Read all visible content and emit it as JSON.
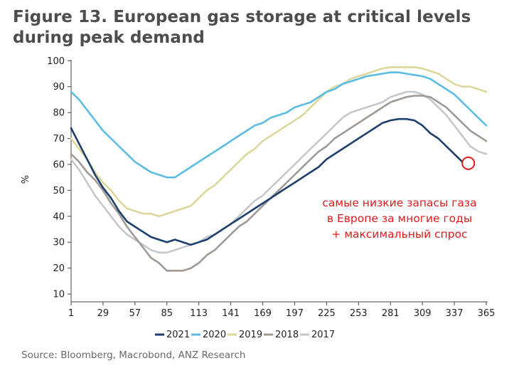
{
  "title": "Figure 13. European gas storage at critical levels during peak demand",
  "source": "Source:  Bloomberg, Macrobond, ANZ Research",
  "chart_data": {
    "type": "line",
    "ylabel": "%",
    "xlabel": "",
    "xlim": [
      1,
      365
    ],
    "ylim": [
      7,
      102
    ],
    "x_ticks": [
      1,
      29,
      57,
      85,
      113,
      141,
      169,
      197,
      225,
      253,
      281,
      309,
      337,
      365
    ],
    "y_ticks": [
      10,
      20,
      30,
      40,
      50,
      60,
      70,
      80,
      90,
      100
    ],
    "grid": false,
    "legend_position": "bottom",
    "series": [
      {
        "name": "2021",
        "color": "#1d3f6b",
        "points": [
          [
            1,
            74
          ],
          [
            8,
            68
          ],
          [
            15,
            62
          ],
          [
            22,
            56
          ],
          [
            29,
            51
          ],
          [
            36,
            47
          ],
          [
            43,
            42
          ],
          [
            50,
            38
          ],
          [
            57,
            36
          ],
          [
            64,
            34
          ],
          [
            71,
            32
          ],
          [
            78,
            31
          ],
          [
            85,
            30
          ],
          [
            92,
            31
          ],
          [
            99,
            30
          ],
          [
            106,
            29
          ],
          [
            113,
            30
          ],
          [
            120,
            31
          ],
          [
            127,
            33
          ],
          [
            134,
            35
          ],
          [
            141,
            37
          ],
          [
            148,
            39
          ],
          [
            155,
            41
          ],
          [
            162,
            43
          ],
          [
            169,
            45
          ],
          [
            176,
            47
          ],
          [
            183,
            49
          ],
          [
            190,
            51
          ],
          [
            197,
            53
          ],
          [
            204,
            55
          ],
          [
            211,
            57
          ],
          [
            218,
            59
          ],
          [
            225,
            62
          ],
          [
            232,
            64
          ],
          [
            239,
            66
          ],
          [
            246,
            68
          ],
          [
            253,
            70
          ],
          [
            260,
            72
          ],
          [
            267,
            74
          ],
          [
            274,
            76
          ],
          [
            281,
            77
          ],
          [
            288,
            77.5
          ],
          [
            295,
            77.5
          ],
          [
            302,
            77
          ],
          [
            309,
            75
          ],
          [
            316,
            72
          ],
          [
            323,
            70
          ],
          [
            330,
            67
          ],
          [
            337,
            64
          ],
          [
            344,
            61
          ]
        ]
      },
      {
        "name": "2020",
        "color": "#5bbde3",
        "points": [
          [
            1,
            88
          ],
          [
            8,
            85
          ],
          [
            15,
            81
          ],
          [
            22,
            77
          ],
          [
            29,
            73
          ],
          [
            36,
            70
          ],
          [
            43,
            67
          ],
          [
            50,
            64
          ],
          [
            57,
            61
          ],
          [
            64,
            59
          ],
          [
            71,
            57
          ],
          [
            78,
            56
          ],
          [
            85,
            55
          ],
          [
            92,
            55
          ],
          [
            99,
            57
          ],
          [
            106,
            59
          ],
          [
            113,
            61
          ],
          [
            120,
            63
          ],
          [
            127,
            65
          ],
          [
            134,
            67
          ],
          [
            141,
            69
          ],
          [
            148,
            71
          ],
          [
            155,
            73
          ],
          [
            162,
            75
          ],
          [
            169,
            76
          ],
          [
            176,
            78
          ],
          [
            183,
            79
          ],
          [
            190,
            80
          ],
          [
            197,
            82
          ],
          [
            204,
            83
          ],
          [
            211,
            84
          ],
          [
            218,
            86
          ],
          [
            225,
            88
          ],
          [
            232,
            89
          ],
          [
            239,
            91
          ],
          [
            246,
            92
          ],
          [
            253,
            93
          ],
          [
            260,
            94
          ],
          [
            267,
            94.5
          ],
          [
            274,
            95
          ],
          [
            281,
            95.5
          ],
          [
            288,
            95.5
          ],
          [
            295,
            95
          ],
          [
            302,
            94.5
          ],
          [
            309,
            94
          ],
          [
            316,
            93
          ],
          [
            323,
            91
          ],
          [
            330,
            89
          ],
          [
            337,
            87
          ],
          [
            344,
            84
          ],
          [
            351,
            81
          ],
          [
            358,
            78
          ],
          [
            365,
            75
          ]
        ]
      },
      {
        "name": "2019",
        "color": "#ddd79b",
        "points": [
          [
            1,
            70
          ],
          [
            8,
            66
          ],
          [
            15,
            62
          ],
          [
            22,
            57
          ],
          [
            29,
            53
          ],
          [
            36,
            50
          ],
          [
            43,
            46
          ],
          [
            50,
            43
          ],
          [
            57,
            42
          ],
          [
            64,
            41
          ],
          [
            71,
            41
          ],
          [
            78,
            40
          ],
          [
            85,
            41
          ],
          [
            92,
            42
          ],
          [
            99,
            43
          ],
          [
            106,
            44
          ],
          [
            113,
            47
          ],
          [
            120,
            50
          ],
          [
            127,
            52
          ],
          [
            134,
            55
          ],
          [
            141,
            58
          ],
          [
            148,
            61
          ],
          [
            155,
            64
          ],
          [
            162,
            66
          ],
          [
            169,
            69
          ],
          [
            176,
            71
          ],
          [
            183,
            73
          ],
          [
            190,
            75
          ],
          [
            197,
            77
          ],
          [
            204,
            79
          ],
          [
            211,
            82
          ],
          [
            218,
            85
          ],
          [
            225,
            88
          ],
          [
            232,
            90
          ],
          [
            239,
            91
          ],
          [
            246,
            93
          ],
          [
            253,
            94
          ],
          [
            260,
            95
          ],
          [
            267,
            96
          ],
          [
            274,
            97
          ],
          [
            281,
            97.5
          ],
          [
            288,
            97.5
          ],
          [
            295,
            97.5
          ],
          [
            302,
            97.5
          ],
          [
            309,
            97
          ],
          [
            316,
            96
          ],
          [
            323,
            95
          ],
          [
            330,
            93
          ],
          [
            337,
            91
          ],
          [
            344,
            90
          ],
          [
            351,
            90
          ],
          [
            358,
            89
          ],
          [
            365,
            88
          ]
        ]
      },
      {
        "name": "2018",
        "color": "#a09a96",
        "points": [
          [
            1,
            64
          ],
          [
            8,
            61
          ],
          [
            15,
            57
          ],
          [
            22,
            54
          ],
          [
            29,
            50
          ],
          [
            36,
            45
          ],
          [
            43,
            41
          ],
          [
            50,
            36
          ],
          [
            57,
            32
          ],
          [
            64,
            28
          ],
          [
            71,
            24
          ],
          [
            78,
            22
          ],
          [
            85,
            19
          ],
          [
            92,
            19
          ],
          [
            99,
            19
          ],
          [
            106,
            20
          ],
          [
            113,
            22
          ],
          [
            120,
            25
          ],
          [
            127,
            27
          ],
          [
            134,
            30
          ],
          [
            141,
            33
          ],
          [
            148,
            36
          ],
          [
            155,
            38
          ],
          [
            162,
            41
          ],
          [
            169,
            44
          ],
          [
            176,
            47
          ],
          [
            183,
            50
          ],
          [
            190,
            53
          ],
          [
            197,
            56
          ],
          [
            204,
            59
          ],
          [
            211,
            62
          ],
          [
            218,
            65
          ],
          [
            225,
            67
          ],
          [
            232,
            70
          ],
          [
            239,
            72
          ],
          [
            246,
            74
          ],
          [
            253,
            76
          ],
          [
            260,
            78
          ],
          [
            267,
            80
          ],
          [
            274,
            82
          ],
          [
            281,
            84
          ],
          [
            288,
            85
          ],
          [
            295,
            86
          ],
          [
            302,
            86.5
          ],
          [
            309,
            86.5
          ],
          [
            316,
            86
          ],
          [
            323,
            84
          ],
          [
            330,
            82
          ],
          [
            337,
            79
          ],
          [
            344,
            76
          ],
          [
            351,
            73
          ],
          [
            358,
            71
          ],
          [
            365,
            69
          ]
        ]
      },
      {
        "name": "2017",
        "color": "#c5c8cb",
        "points": [
          [
            1,
            62
          ],
          [
            8,
            58
          ],
          [
            15,
            53
          ],
          [
            22,
            48
          ],
          [
            29,
            44
          ],
          [
            36,
            40
          ],
          [
            43,
            36
          ],
          [
            50,
            33
          ],
          [
            57,
            31
          ],
          [
            64,
            29
          ],
          [
            71,
            27
          ],
          [
            78,
            26
          ],
          [
            85,
            26
          ],
          [
            92,
            27
          ],
          [
            99,
            28
          ],
          [
            106,
            29
          ],
          [
            113,
            30
          ],
          [
            120,
            32
          ],
          [
            127,
            33
          ],
          [
            134,
            35
          ],
          [
            141,
            37
          ],
          [
            148,
            40
          ],
          [
            155,
            43
          ],
          [
            162,
            46
          ],
          [
            169,
            48
          ],
          [
            176,
            51
          ],
          [
            183,
            54
          ],
          [
            190,
            57
          ],
          [
            197,
            60
          ],
          [
            204,
            63
          ],
          [
            211,
            66
          ],
          [
            218,
            69
          ],
          [
            225,
            72
          ],
          [
            232,
            75
          ],
          [
            239,
            78
          ],
          [
            246,
            80
          ],
          [
            253,
            81
          ],
          [
            260,
            82
          ],
          [
            267,
            83
          ],
          [
            274,
            84
          ],
          [
            281,
            86
          ],
          [
            288,
            87
          ],
          [
            295,
            88
          ],
          [
            302,
            88
          ],
          [
            309,
            87
          ],
          [
            316,
            85
          ],
          [
            323,
            82
          ],
          [
            330,
            79
          ],
          [
            337,
            75
          ],
          [
            344,
            71
          ],
          [
            351,
            67
          ],
          [
            358,
            65
          ],
          [
            365,
            64
          ]
        ]
      }
    ],
    "annotations": [
      {
        "lines": [
          "самые низкие запасы газа",
          "в Европе за многие годы",
          "+ максимальный спрос"
        ],
        "color": "#e01b1b",
        "target": {
          "x": 348,
          "y": 61
        }
      }
    ]
  }
}
